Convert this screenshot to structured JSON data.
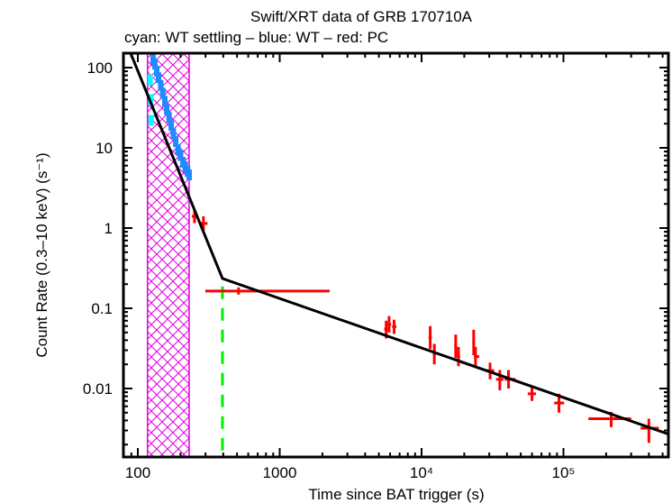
{
  "chart_data": {
    "type": "scatter",
    "title": "Swift/XRT data of GRB 170710A",
    "subtitle": "cyan: WT settling – blue: WT – red: PC",
    "xlabel": "Time since BAT trigger (s)",
    "ylabel": "Count Rate (0.3–10 keV) (s⁻¹)",
    "xscale": "log",
    "yscale": "log",
    "xlim": [
      80,
      560000
    ],
    "ylim": [
      0.0018,
      180
    ],
    "x_ticks": [
      {
        "value": 100,
        "label": "100"
      },
      {
        "value": 1000,
        "label": "1000"
      },
      {
        "value": 10000,
        "label": "10⁴"
      },
      {
        "value": 100000,
        "label": "10⁵"
      }
    ],
    "y_ticks": [
      {
        "value": 100,
        "label": "100"
      },
      {
        "value": 10,
        "label": "10"
      },
      {
        "value": 1,
        "label": "1"
      },
      {
        "value": 0.1,
        "label": "0.1"
      },
      {
        "value": 0.01,
        "label": "0.01"
      }
    ],
    "colors": {
      "wt_settling": "#00ffff",
      "wt": "#1e8cff",
      "pc": "#ff0000",
      "model": "#000000",
      "hatch": "#e000e0",
      "break_marker": "#00ee00"
    },
    "excluded_region": {
      "x_start": 117,
      "x_end": 230
    },
    "break_marker_time": 395,
    "model_line": {
      "name": "broken power-law fit",
      "points": [
        [
          89,
          151
        ],
        [
          395,
          0.235
        ],
        [
          550000,
          0.0027
        ]
      ]
    },
    "series": [
      {
        "name": "WT settling",
        "color_key": "wt_settling",
        "points": [
          {
            "x": 122,
            "y": 70
          },
          {
            "x": 123,
            "y": 40
          },
          {
            "x": 124,
            "y": 22
          }
        ]
      },
      {
        "name": "WT",
        "color_key": "wt",
        "points": [
          {
            "x": 128,
            "y": 130
          },
          {
            "x": 132,
            "y": 110
          },
          {
            "x": 136,
            "y": 90
          },
          {
            "x": 140,
            "y": 75
          },
          {
            "x": 145,
            "y": 60
          },
          {
            "x": 150,
            "y": 48
          },
          {
            "x": 155,
            "y": 38
          },
          {
            "x": 160,
            "y": 30
          },
          {
            "x": 166,
            "y": 24
          },
          {
            "x": 172,
            "y": 19
          },
          {
            "x": 178,
            "y": 15
          },
          {
            "x": 185,
            "y": 12
          },
          {
            "x": 192,
            "y": 9.5
          },
          {
            "x": 200,
            "y": 8
          },
          {
            "x": 208,
            "y": 6.6
          },
          {
            "x": 216,
            "y": 5.8
          },
          {
            "x": 224,
            "y": 5.1
          },
          {
            "x": 230,
            "y": 4.6
          }
        ]
      },
      {
        "name": "PC",
        "color_key": "pc",
        "points": [
          {
            "x": 251,
            "y": 1.4,
            "xlo": 240,
            "xhi": 265,
            "ylo": 1.15,
            "yhi": 1.7
          },
          {
            "x": 290,
            "y": 1.14,
            "xlo": 270,
            "xhi": 310,
            "ylo": 0.92,
            "yhi": 1.4
          },
          {
            "x": 513,
            "y": 0.164,
            "xlo": 299,
            "xhi": 2250,
            "ylo": 0.148,
            "yhi": 0.182
          },
          {
            "x": 5630,
            "y": 0.055,
            "xlo": 5450,
            "xhi": 5800,
            "ylo": 0.042,
            "yhi": 0.07
          },
          {
            "x": 5900,
            "y": 0.063,
            "xlo": 5750,
            "xhi": 6100,
            "ylo": 0.05,
            "yhi": 0.08
          },
          {
            "x": 6400,
            "y": 0.059,
            "xlo": 6200,
            "xhi": 6650,
            "ylo": 0.048,
            "yhi": 0.072
          },
          {
            "x": 11500,
            "y": 0.043,
            "xlo": 11200,
            "xhi": 11800,
            "ylo": 0.031,
            "yhi": 0.06
          },
          {
            "x": 12300,
            "y": 0.027,
            "xlo": 12000,
            "xhi": 12600,
            "ylo": 0.02,
            "yhi": 0.036
          },
          {
            "x": 17400,
            "y": 0.034,
            "xlo": 17000,
            "xhi": 17800,
            "ylo": 0.024,
            "yhi": 0.047
          },
          {
            "x": 18200,
            "y": 0.025,
            "xlo": 17800,
            "xhi": 18700,
            "ylo": 0.019,
            "yhi": 0.033
          },
          {
            "x": 23300,
            "y": 0.037,
            "xlo": 22800,
            "xhi": 23800,
            "ylo": 0.026,
            "yhi": 0.054
          },
          {
            "x": 24000,
            "y": 0.025,
            "xlo": 23400,
            "xhi": 25500,
            "ylo": 0.019,
            "yhi": 0.033
          },
          {
            "x": 30400,
            "y": 0.0167,
            "xlo": 28500,
            "xhi": 32500,
            "ylo": 0.013,
            "yhi": 0.021
          },
          {
            "x": 35600,
            "y": 0.013,
            "xlo": 33500,
            "xhi": 37800,
            "ylo": 0.0095,
            "yhi": 0.017
          },
          {
            "x": 41000,
            "y": 0.013,
            "xlo": 38500,
            "xhi": 46000,
            "ylo": 0.01,
            "yhi": 0.017
          },
          {
            "x": 60000,
            "y": 0.0086,
            "xlo": 56000,
            "xhi": 64000,
            "ylo": 0.007,
            "yhi": 0.0106
          },
          {
            "x": 93000,
            "y": 0.0066,
            "xlo": 86000,
            "xhi": 101000,
            "ylo": 0.005,
            "yhi": 0.0086
          },
          {
            "x": 217000,
            "y": 0.0042,
            "xlo": 150000,
            "xhi": 300000,
            "ylo": 0.0033,
            "yhi": 0.0051
          },
          {
            "x": 400000,
            "y": 0.0032,
            "xlo": 350000,
            "xhi": 470000,
            "ylo": 0.0021,
            "yhi": 0.0042
          }
        ]
      }
    ]
  }
}
